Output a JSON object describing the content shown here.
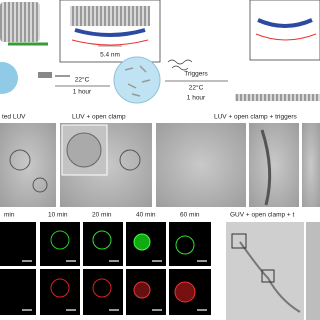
{
  "schematic": {
    "spacing_label": "5.4 nm",
    "step1": {
      "temperature": "22°C",
      "time": "1 hour"
    },
    "step2": {
      "reagent": "Triggers",
      "temperature": "22°C",
      "time": "1 hour"
    }
  },
  "tem_panels": {
    "labels": [
      "ted LUV",
      "LUV + open clamp",
      "LUV + open clamp + triggers"
    ]
  },
  "fluorescence": {
    "time_labels": [
      "min",
      "10 min",
      "20 min",
      "40 min",
      "60 min"
    ],
    "guv_label": "GUV + open clamp + t"
  }
}
